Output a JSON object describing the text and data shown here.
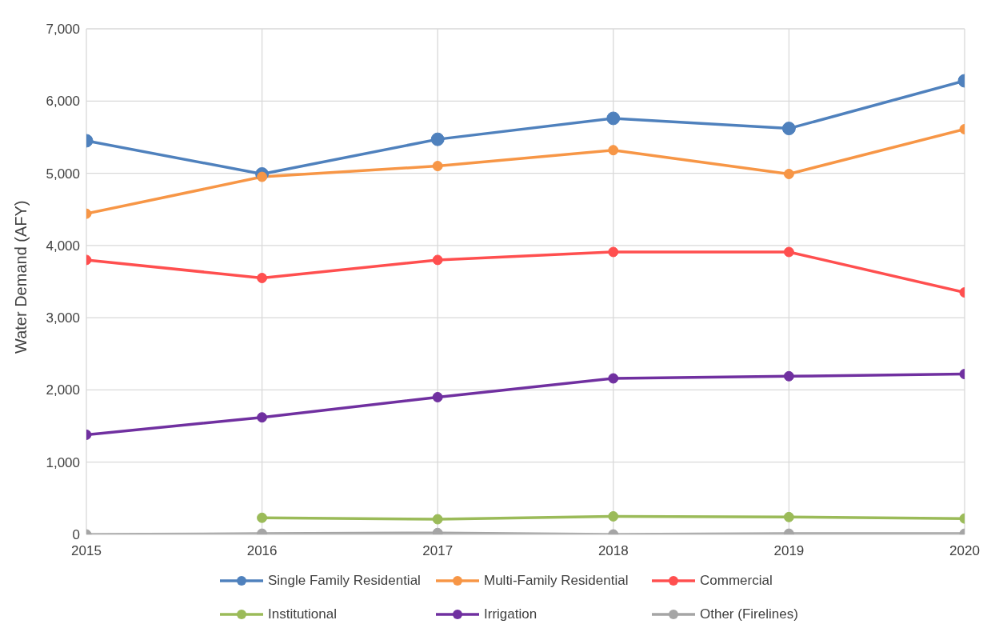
{
  "chart_data": {
    "type": "line",
    "ylabel": "Water Demand (AFY)",
    "x": [
      2015,
      2016,
      2017,
      2018,
      2019,
      2020
    ],
    "xlim": [
      2015,
      2020
    ],
    "xticks": [
      2015,
      2016,
      2017,
      2018,
      2019,
      2020
    ],
    "ylim": [
      0,
      7000
    ],
    "yticks": [
      {
        "value": 0,
        "label": "0"
      },
      {
        "value": 1000,
        "label": "1,000"
      },
      {
        "value": 2000,
        "label": "2,000"
      },
      {
        "value": 3000,
        "label": "3,000"
      },
      {
        "value": 4000,
        "label": "4,000"
      },
      {
        "value": 5000,
        "label": "5,000"
      },
      {
        "value": 6000,
        "label": "6,000"
      },
      {
        "value": 7000,
        "label": "7,000"
      }
    ],
    "grid": true,
    "legend": "bottom",
    "marker": "circle",
    "line_style": "solid",
    "series": [
      {
        "name": "Single Family Residential",
        "color": "#4f81bd",
        "values": [
          5450,
          4990,
          5470,
          5760,
          5620,
          6280
        ]
      },
      {
        "name": "Multi-Family Residential",
        "color": "#f79646",
        "values": [
          4440,
          4950,
          5100,
          5320,
          4990,
          5610
        ]
      },
      {
        "name": "Commercial",
        "color": "#ff4f4f",
        "values": [
          3800,
          3550,
          3800,
          3910,
          3910,
          3350
        ]
      },
      {
        "name": "Institutional",
        "color": "#9bbb59",
        "values": [
          null,
          230,
          210,
          250,
          240,
          220
        ]
      },
      {
        "name": "Irrigation",
        "color": "#7030a0",
        "values": [
          1380,
          1620,
          1900,
          2160,
          2190,
          2220
        ]
      },
      {
        "name": "Other (Firelines)",
        "color": "#a5a5a5",
        "values": [
          0,
          10,
          20,
          0,
          10,
          10
        ]
      }
    ]
  }
}
